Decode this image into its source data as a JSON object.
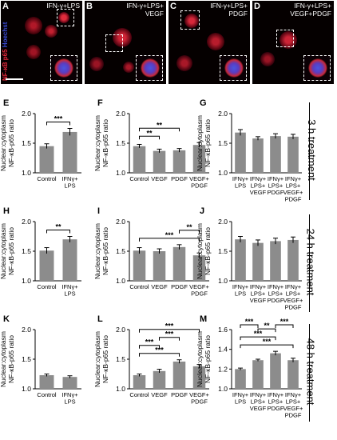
{
  "micrographs": {
    "stain_label": "NF-κB p65 Hoechst",
    "stain_colors": {
      "nfkb": "#e8283c",
      "hoechst": "#3a4bd8"
    },
    "panels": [
      {
        "letter": "A",
        "title": "IFN-γ+LPS"
      },
      {
        "letter": "B",
        "title": "IFN-γ+LPS+\nVEGF"
      },
      {
        "letter": "C",
        "title": "IFN-γ+LPS+\nPDGF"
      },
      {
        "letter": "D",
        "title": "IFN-γ+LPS+\nVEGF+PDGF"
      }
    ]
  },
  "row_labels": [
    "3 h treatment",
    "24 h treatment",
    "48 h treatment"
  ],
  "chart_data": [
    {
      "letter": "E",
      "type": "bar",
      "ylabel": "Nuclear:cytoplasm\nNF-κB-p65 ratio",
      "ylim": [
        1.0,
        2.0
      ],
      "yticks": [
        "1.0",
        "1.5",
        "2.0"
      ],
      "categories": [
        "Control",
        "IFNγ+\nLPS"
      ],
      "values": [
        1.45,
        1.69
      ],
      "errors": [
        0.04,
        0.06
      ],
      "sig": [
        {
          "from": 0,
          "to": 1,
          "label": "***"
        }
      ]
    },
    {
      "letter": "F",
      "type": "bar",
      "ylabel": "Nuclear:cytoplasm\nNF-κB-p65 ratio",
      "ylim": [
        1.0,
        2.0
      ],
      "yticks": [
        "1.0",
        "1.5",
        "2.0"
      ],
      "categories": [
        "Control",
        "VEGF",
        "PDGF",
        "VEGF+\nPDGF"
      ],
      "values": [
        1.45,
        1.37,
        1.38,
        1.47
      ],
      "errors": [
        0.03,
        0.03,
        0.03,
        0.04
      ],
      "sig": [
        {
          "from": 0,
          "to": 1,
          "label": "**"
        },
        {
          "from": 0,
          "to": 2,
          "label": "**"
        }
      ]
    },
    {
      "letter": "G",
      "type": "bar",
      "ylabel": "Nuclear:cytoplasm\nNF-κB-p65 ratio",
      "ylim": [
        1.0,
        2.0
      ],
      "yticks": [
        "1.0",
        "1.5",
        "2.0"
      ],
      "categories": [
        "IFNγ+\nLPS",
        "IFNγ+\nLPS+\nVEGF",
        "IFNγ+\nLPS+\nPDGF",
        "IFNγ+\nLPS+\nVEGF+\nPDGF"
      ],
      "values": [
        1.68,
        1.58,
        1.62,
        1.61
      ],
      "errors": [
        0.05,
        0.03,
        0.04,
        0.04
      ],
      "sig": []
    },
    {
      "letter": "H",
      "type": "bar",
      "ylabel": "Nuclear:cytoplasm\nNF-κB-p65 ratio",
      "ylim": [
        1.0,
        2.0
      ],
      "yticks": [
        "1.0",
        "1.5",
        "2.0"
      ],
      "categories": [
        "Control",
        "IFNγ+\nLPS"
      ],
      "values": [
        1.51,
        1.7
      ],
      "errors": [
        0.05,
        0.05
      ],
      "sig": [
        {
          "from": 0,
          "to": 1,
          "label": "**"
        }
      ]
    },
    {
      "letter": "I",
      "type": "bar",
      "ylabel": "Nuclear:cytoplasm\nNF-κB-p65 ratio",
      "ylim": [
        1.0,
        2.0
      ],
      "yticks": [
        "1.0",
        "1.5",
        "2.0"
      ],
      "categories": [
        "Control",
        "VEGF",
        "PDGF",
        "VEGF+\nPDGF"
      ],
      "values": [
        1.51,
        1.5,
        1.57,
        1.43
      ],
      "errors": [
        0.05,
        0.04,
        0.04,
        0.04
      ],
      "sig": [
        {
          "from": 0,
          "to": 3,
          "label": "***"
        },
        {
          "from": 2,
          "to": 3,
          "label": "**"
        }
      ]
    },
    {
      "letter": "J",
      "type": "bar",
      "ylabel": "Nuclear:cytoplasm\nNF-κB-p65 ratio",
      "ylim": [
        1.0,
        2.0
      ],
      "yticks": [
        "1.0",
        "1.5",
        "2.0"
      ],
      "categories": [
        "IFNγ+\nLPS",
        "IFNγ+\nLPS+\nVEGF",
        "IFNγ+\nLPS+\nPDGF",
        "IFNγ+\nLPS+\nVEGF+\nPDGF"
      ],
      "values": [
        1.7,
        1.64,
        1.67,
        1.69
      ],
      "errors": [
        0.05,
        0.05,
        0.05,
        0.05
      ],
      "sig": []
    },
    {
      "letter": "K",
      "type": "bar",
      "ylabel": "Nuclear:cytoplasm\nNF-κB-p65 ratio",
      "ylim": [
        1.0,
        2.0
      ],
      "yticks": [
        "1.0",
        "1.5",
        "2.0"
      ],
      "categories": [
        "Control",
        "IFNγ+\nLPS"
      ],
      "values": [
        1.23,
        1.2
      ],
      "errors": [
        0.02,
        0.02
      ],
      "sig": []
    },
    {
      "letter": "L",
      "type": "bar",
      "ylabel": "Nuclear:cytoplasm\nNF-κB-p65 ratio",
      "ylim": [
        1.0,
        2.0
      ],
      "yticks": [
        "1.0",
        "1.5",
        "2.0"
      ],
      "categories": [
        "Control",
        "VEGF",
        "PDGF",
        "VEGF+\nPDGF"
      ],
      "values": [
        1.23,
        1.3,
        1.46,
        1.38
      ],
      "errors": [
        0.02,
        0.03,
        0.03,
        0.03
      ],
      "sig": [
        {
          "from": 0,
          "to": 2,
          "label": "***"
        },
        {
          "from": 0,
          "to": 1,
          "label": "***"
        },
        {
          "from": 1,
          "to": 2,
          "label": "***"
        },
        {
          "from": 0,
          "to": 3,
          "label": "***"
        }
      ]
    },
    {
      "letter": "M",
      "type": "bar",
      "ylabel": "Nuclear:cytoplasm\nNF-κB-p65 ratio",
      "ylim": [
        1.0,
        1.6
      ],
      "yticks": [
        "1.0",
        "1.2",
        "1.4",
        "1.6"
      ],
      "categories": [
        "IFNγ+\nLPS",
        "IFNγ+\nLPS+\nVEGF",
        "IFNγ+\nLPS+\nPDGF",
        "IFNγ+\nLPS+\nVEGF+\nPDGF"
      ],
      "values": [
        1.2,
        1.29,
        1.36,
        1.29
      ],
      "errors": [
        0.01,
        0.01,
        0.02,
        0.02
      ],
      "sig": [
        {
          "from": 0,
          "to": 3,
          "label": "***"
        },
        {
          "from": 0,
          "to": 2,
          "label": "***"
        },
        {
          "from": 1,
          "to": 2,
          "label": "**"
        },
        {
          "from": 0,
          "to": 1,
          "label": "***"
        },
        {
          "from": 2,
          "to": 3,
          "label": "***"
        }
      ]
    }
  ]
}
